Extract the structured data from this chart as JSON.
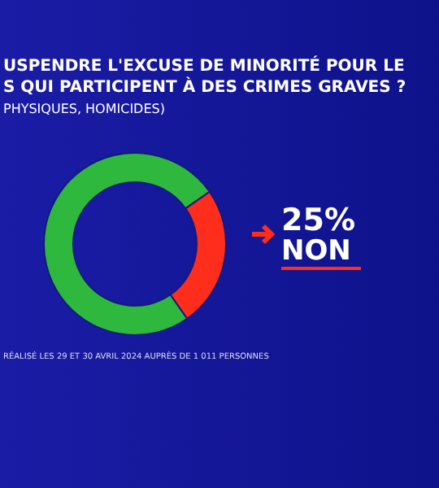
{
  "chart_data": {
    "type": "donut",
    "title": "USPENDRE L'EXCUSE DE MINORITÉ POUR LE\nS QUI PARTICIPENT À DES CRIMES GRAVES ?",
    "subtitle": "PHYSIQUES, HOMICIDES)",
    "categories": [
      null,
      "NON"
    ],
    "values": [
      75,
      25
    ],
    "colors": [
      "#2fb83e",
      "#ff2d1c"
    ],
    "value_labels": [
      null,
      "25%"
    ],
    "annotations": [
      "RÉALISÉ LES 29 ET 30 AVRIL 2024 AUPRÈS DE 1 011 PERSONNES"
    ]
  }
}
